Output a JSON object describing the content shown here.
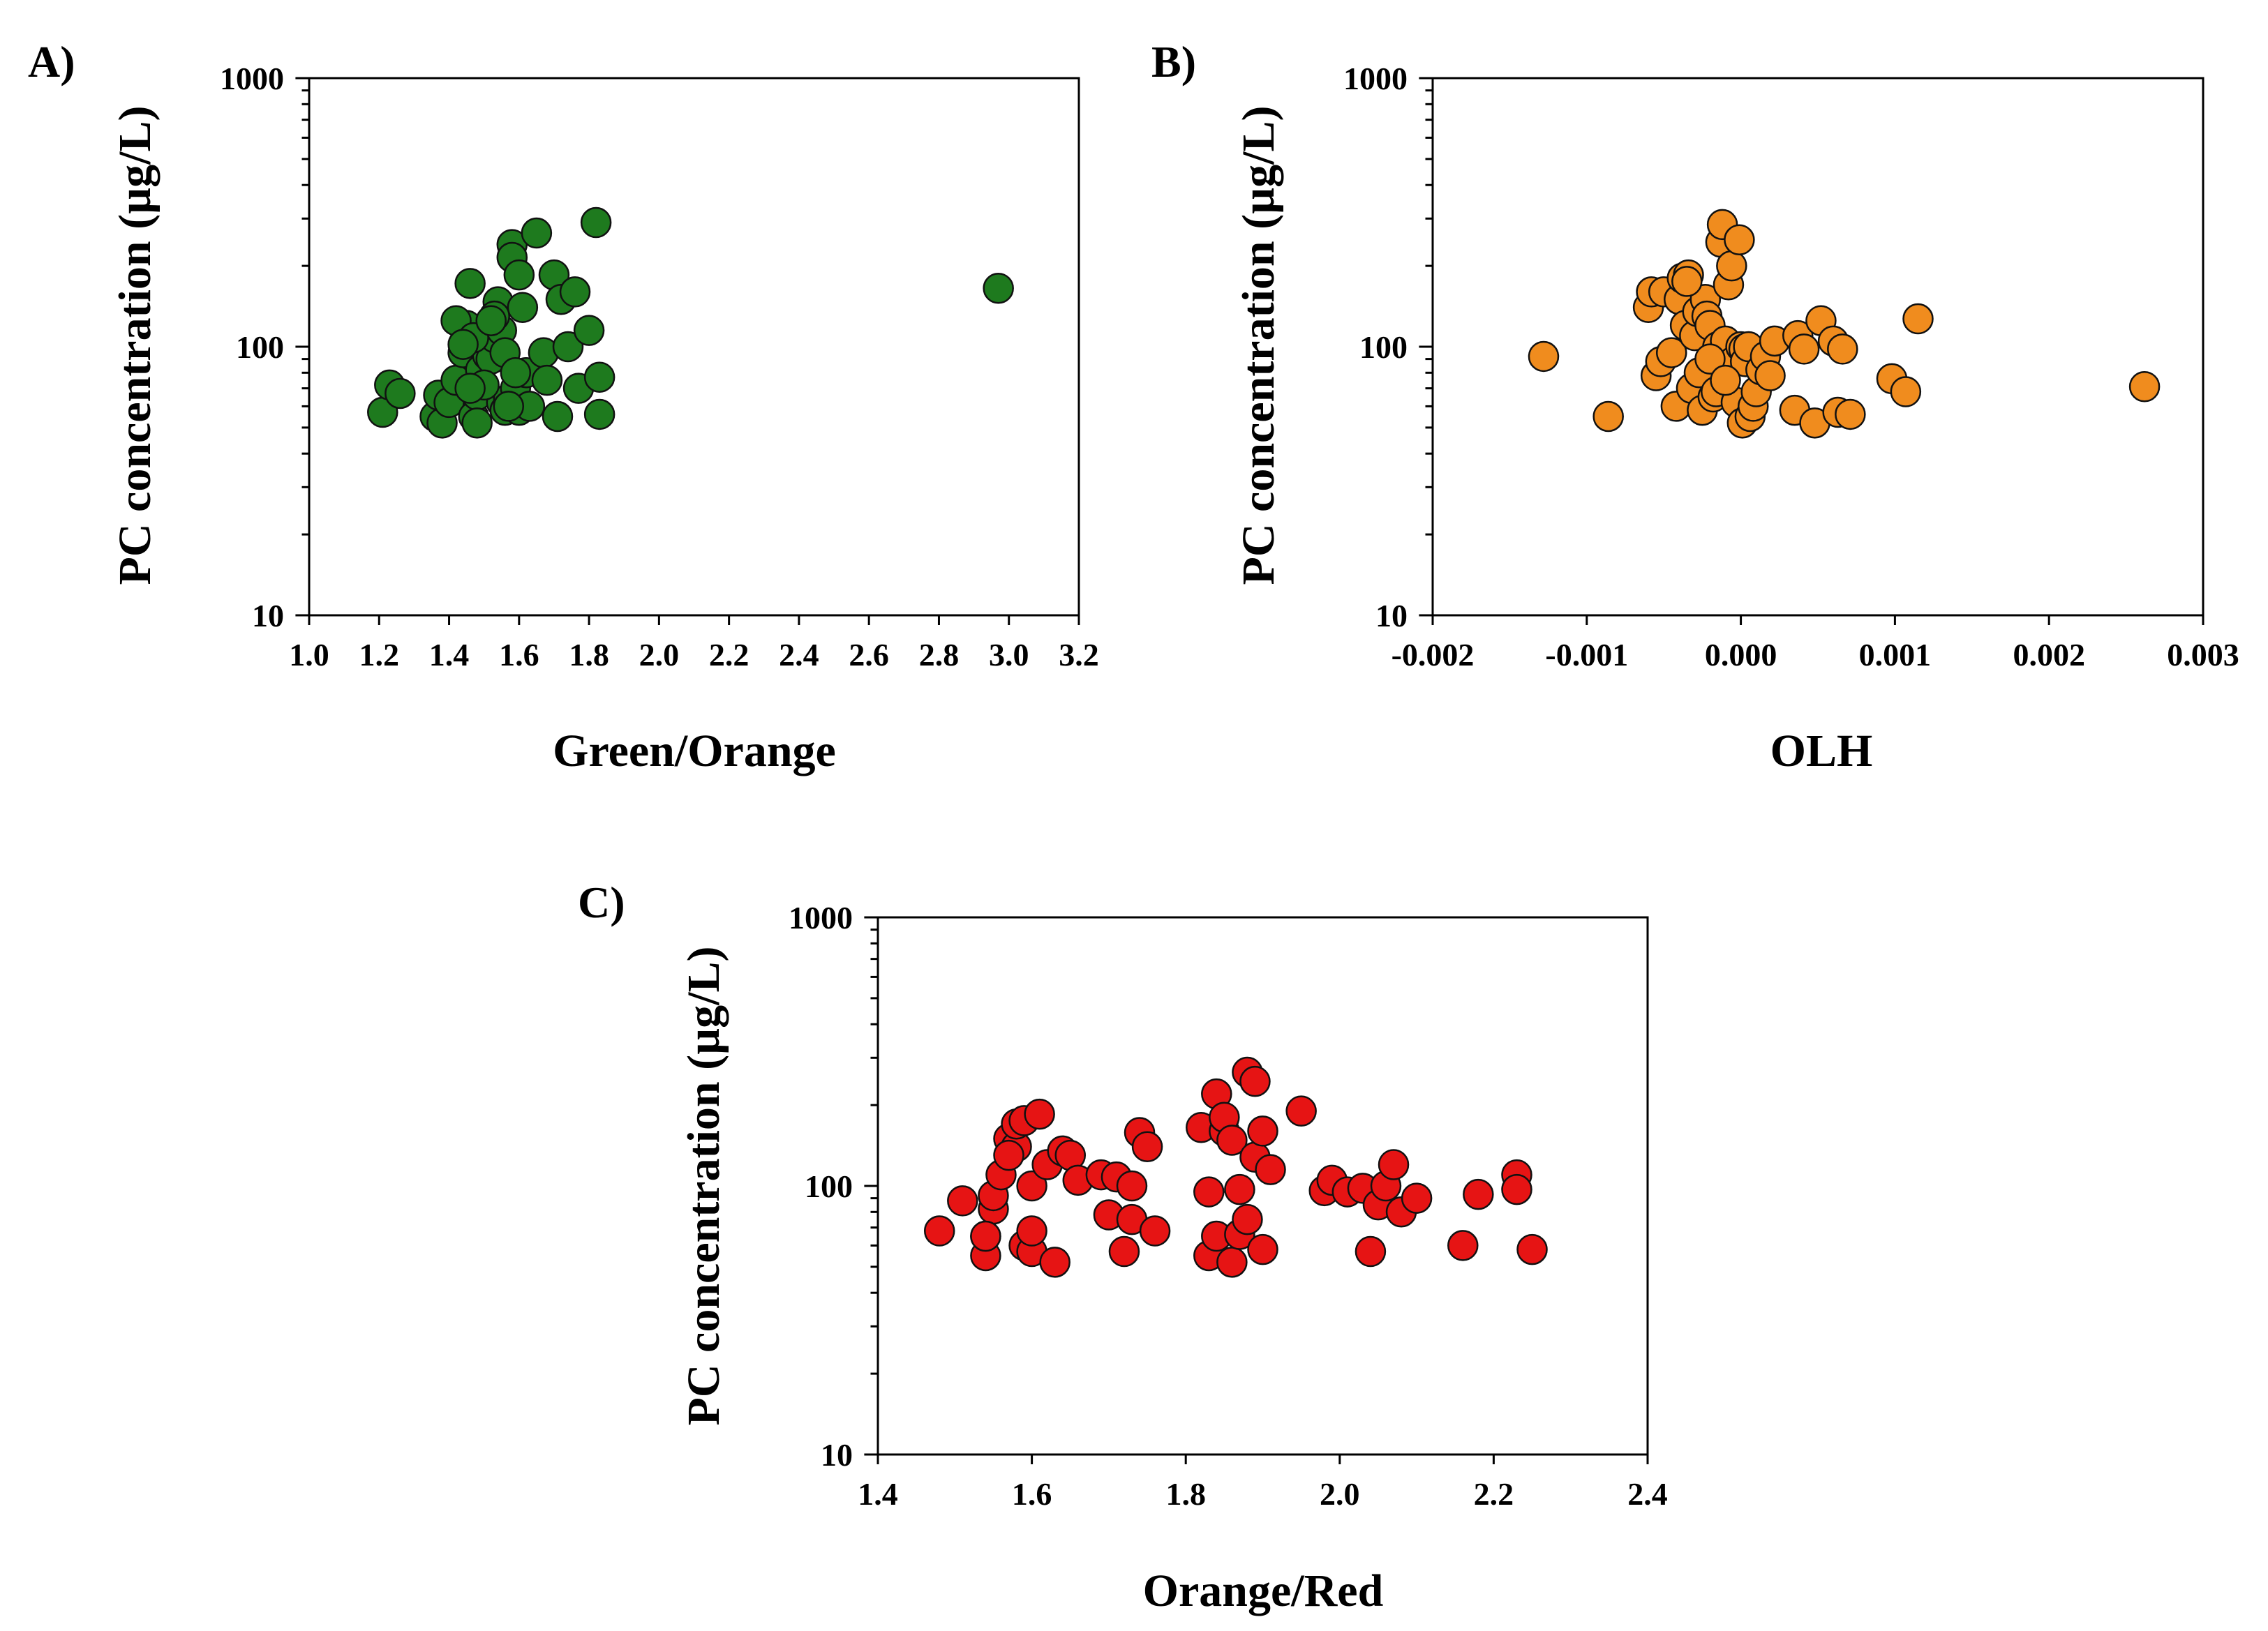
{
  "chart_data": [
    {
      "type": "scatter",
      "panel_label": "A)",
      "title": "",
      "xlabel": "Green/Orange",
      "ylabel": "PC concentration (µg/L)",
      "xlim": [
        1.0,
        3.2
      ],
      "ylim": [
        10,
        1000
      ],
      "yscale": "log",
      "xticks": [
        1.0,
        1.2,
        1.4,
        1.6,
        1.8,
        2.0,
        2.2,
        2.4,
        2.6,
        2.8,
        3.0,
        3.2
      ],
      "xtick_labels": [
        "1.0",
        "1.2",
        "1.4",
        "1.6",
        "1.8",
        "2.0",
        "2.2",
        "2.4",
        "2.6",
        "2.8",
        "3.0",
        "3.2"
      ],
      "yticks": [
        10,
        100,
        1000
      ],
      "ytick_labels": [
        "10",
        "100",
        "1000"
      ],
      "color": "#1e7a1e",
      "x": [
        1.21,
        1.23,
        1.26,
        1.36,
        1.37,
        1.38,
        1.4,
        1.42,
        1.44,
        1.45,
        1.46,
        1.47,
        1.48,
        1.48,
        1.49,
        1.5,
        1.51,
        1.52,
        1.53,
        1.54,
        1.55,
        1.55,
        1.56,
        1.57,
        1.58,
        1.58,
        1.59,
        1.6,
        1.6,
        1.61,
        1.62,
        1.63,
        1.65,
        1.67,
        1.68,
        1.7,
        1.71,
        1.72,
        1.74,
        1.76,
        1.77,
        1.8,
        1.82,
        1.83,
        1.83,
        1.42,
        1.47,
        1.53,
        1.56,
        1.59,
        1.5,
        1.44,
        1.52,
        1.57,
        1.46,
        2.97
      ],
      "y": [
        57,
        72,
        67,
        55,
        66,
        52,
        62,
        75,
        95,
        120,
        172,
        55,
        66,
        52,
        82,
        100,
        93,
        90,
        108,
        147,
        115,
        62,
        58,
        64,
        240,
        215,
        70,
        58,
        185,
        140,
        80,
        60,
        265,
        95,
        75,
        185,
        55,
        150,
        100,
        160,
        70,
        115,
        290,
        77,
        56,
        125,
        108,
        130,
        95,
        80,
        72,
        102,
        125,
        60,
        70,
        165
      ]
    },
    {
      "type": "scatter",
      "panel_label": "B)",
      "title": "",
      "xlabel": "OLH",
      "ylabel": "PC concentration (µg/L)",
      "xlim": [
        -0.002,
        0.003
      ],
      "ylim": [
        10,
        1000
      ],
      "yscale": "log",
      "xticks": [
        -0.002,
        -0.001,
        0.0,
        0.001,
        0.002,
        0.003
      ],
      "xtick_labels": [
        "-0.002",
        "-0.001",
        "0.000",
        "0.001",
        "0.002",
        "0.003"
      ],
      "yticks": [
        10,
        100,
        1000
      ],
      "ytick_labels": [
        "10",
        "100",
        "1000"
      ],
      "color": "#f08c1e",
      "x": [
        -0.00128,
        -0.00086,
        -0.0006,
        -0.00058,
        -0.00055,
        -0.00052,
        -0.0005,
        -0.00045,
        -0.00042,
        -0.0004,
        -0.00038,
        -0.00036,
        -0.00034,
        -0.00032,
        -0.0003,
        -0.00028,
        -0.00027,
        -0.00025,
        -0.00023,
        -0.00022,
        -0.0002,
        -0.00018,
        -0.00016,
        -0.00015,
        -0.00013,
        -0.00012,
        -0.0001,
        -8e-05,
        -6e-05,
        -5e-05,
        -3e-05,
        -1e-05,
        0.0,
        1e-05,
        2e-05,
        3e-05,
        5e-05,
        6e-05,
        8e-05,
        0.0001,
        0.00013,
        0.00016,
        0.00019,
        0.00022,
        0.00035,
        0.00037,
        0.00041,
        0.00048,
        0.00052,
        0.0006,
        0.00063,
        0.00066,
        0.00071,
        0.00098,
        0.00107,
        0.00115,
        0.00262,
        -0.00035,
        -0.0002,
        -0.0001
      ],
      "y": [
        92,
        55,
        140,
        160,
        78,
        88,
        160,
        95,
        60,
        150,
        180,
        120,
        185,
        70,
        110,
        135,
        80,
        58,
        150,
        130,
        120,
        65,
        68,
        100,
        245,
        285,
        105,
        170,
        200,
        88,
        62,
        250,
        100,
        52,
        98,
        88,
        100,
        55,
        60,
        68,
        82,
        92,
        78,
        105,
        58,
        110,
        98,
        52,
        125,
        105,
        57,
        98,
        56,
        76,
        68,
        127,
        71,
        175,
        90,
        75
      ]
    },
    {
      "type": "scatter",
      "panel_label": "C)",
      "title": "",
      "xlabel": "Orange/Red",
      "ylabel": "PC concentration (µg/L)",
      "xlim": [
        1.4,
        2.4
      ],
      "ylim": [
        10,
        1000
      ],
      "yscale": "log",
      "xticks": [
        1.4,
        1.6,
        1.8,
        2.0,
        2.2,
        2.4
      ],
      "xtick_labels": [
        "1.4",
        "1.6",
        "1.8",
        "2.0",
        "2.2",
        "2.4"
      ],
      "yticks": [
        10,
        100,
        1000
      ],
      "ytick_labels": [
        "10",
        "100",
        "1000"
      ],
      "color": "#e61414",
      "x": [
        1.48,
        1.51,
        1.54,
        1.54,
        1.55,
        1.55,
        1.56,
        1.57,
        1.58,
        1.58,
        1.59,
        1.59,
        1.6,
        1.6,
        1.6,
        1.61,
        1.62,
        1.63,
        1.64,
        1.65,
        1.66,
        1.69,
        1.7,
        1.71,
        1.72,
        1.73,
        1.73,
        1.74,
        1.75,
        1.76,
        1.82,
        1.83,
        1.83,
        1.84,
        1.84,
        1.85,
        1.85,
        1.86,
        1.86,
        1.87,
        1.87,
        1.88,
        1.88,
        1.89,
        1.89,
        1.9,
        1.9,
        1.91,
        1.95,
        1.98,
        1.99,
        2.01,
        2.03,
        2.04,
        2.05,
        2.06,
        2.07,
        2.08,
        2.1,
        2.16,
        2.18,
        2.23,
        2.23,
        2.25,
        1.57,
        1.54
      ],
      "y": [
        68,
        88,
        55,
        65,
        82,
        92,
        110,
        150,
        140,
        170,
        60,
        175,
        57,
        100,
        68,
        185,
        120,
        52,
        135,
        130,
        105,
        110,
        78,
        108,
        57,
        100,
        75,
        158,
        140,
        68,
        165,
        95,
        55,
        220,
        65,
        160,
        180,
        52,
        148,
        97,
        66,
        265,
        75,
        245,
        128,
        58,
        160,
        115,
        190,
        96,
        105,
        95,
        98,
        57,
        85,
        100,
        120,
        80,
        90,
        60,
        93,
        110,
        97,
        58,
        130,
        65
      ]
    }
  ]
}
